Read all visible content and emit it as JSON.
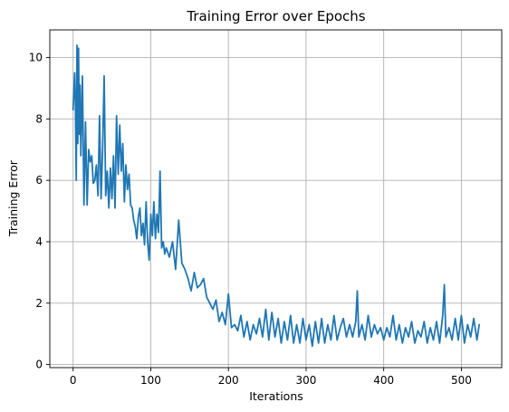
{
  "chart_data": {
    "type": "line",
    "title": "Training Error over Epochs",
    "xlabel": "Iterations",
    "ylabel": "Training Error",
    "xlim": [
      -30,
      552
    ],
    "ylim": [
      -0.1,
      10.9
    ],
    "xticks": [
      0,
      100,
      200,
      300,
      400,
      500
    ],
    "yticks": [
      0,
      2,
      4,
      6,
      8,
      10
    ],
    "grid": true,
    "legend": "none",
    "colors": {
      "series": "#1f77b4",
      "grid": "#b0b0b0"
    },
    "series": [
      {
        "x": [
          0,
          2,
          3,
          4,
          5,
          6,
          7,
          8,
          9,
          10,
          12,
          14,
          16,
          18,
          20,
          22,
          24,
          26,
          28,
          30,
          32,
          34,
          36,
          38,
          40,
          42,
          44,
          46,
          48,
          50,
          52,
          54,
          56,
          58,
          60,
          62,
          64,
          66,
          68,
          70,
          72,
          74,
          76,
          78,
          80,
          82,
          84,
          86,
          88,
          90,
          92,
          94,
          96,
          98,
          100,
          102,
          104,
          106,
          108,
          110,
          112,
          114,
          116,
          118,
          120,
          124,
          128,
          132,
          136,
          140,
          144,
          148,
          152,
          156,
          160,
          164,
          168,
          172,
          176,
          180,
          184,
          188,
          192,
          196,
          200,
          204,
          208,
          212,
          216,
          220,
          224,
          228,
          232,
          236,
          240,
          244,
          248,
          252,
          256,
          260,
          264,
          268,
          272,
          276,
          280,
          284,
          288,
          292,
          296,
          300,
          304,
          308,
          312,
          316,
          320,
          324,
          328,
          332,
          336,
          340,
          344,
          348,
          352,
          356,
          360,
          364,
          366,
          368,
          372,
          376,
          380,
          384,
          388,
          392,
          396,
          400,
          404,
          408,
          412,
          416,
          420,
          424,
          428,
          432,
          436,
          440,
          444,
          448,
          452,
          456,
          460,
          464,
          468,
          472,
          476,
          478,
          480,
          484,
          488,
          492,
          496,
          500,
          504,
          508,
          512,
          516,
          520,
          523
        ],
        "y": [
          8.3,
          9.5,
          8.4,
          6.0,
          10.4,
          7.2,
          10.3,
          7.5,
          9.1,
          6.8,
          9.4,
          5.2,
          7.9,
          5.2,
          7.0,
          6.6,
          6.8,
          5.9,
          6.0,
          6.5,
          5.5,
          8.1,
          5.4,
          7.0,
          9.4,
          5.5,
          6.3,
          5.1,
          6.4,
          5.4,
          6.8,
          5.1,
          8.1,
          6.2,
          7.8,
          6.3,
          7.2,
          5.3,
          6.5,
          5.7,
          6.2,
          5.2,
          5.1,
          4.7,
          4.5,
          4.1,
          4.8,
          5.1,
          4.2,
          4.6,
          3.9,
          5.3,
          4.0,
          3.4,
          4.9,
          4.2,
          5.3,
          4.1,
          4.9,
          4.3,
          6.3,
          3.8,
          4.0,
          3.6,
          3.8,
          3.5,
          4.0,
          3.1,
          4.7,
          3.3,
          3.1,
          2.8,
          2.4,
          3.0,
          2.5,
          2.6,
          2.8,
          2.2,
          2.0,
          1.8,
          2.1,
          1.4,
          1.7,
          1.3,
          2.3,
          1.2,
          1.3,
          1.1,
          1.6,
          0.9,
          1.4,
          0.8,
          1.3,
          1.0,
          1.5,
          0.9,
          1.8,
          0.8,
          1.7,
          0.9,
          1.5,
          0.7,
          1.4,
          0.8,
          1.6,
          0.7,
          1.3,
          0.7,
          1.5,
          0.8,
          1.3,
          0.6,
          1.4,
          0.7,
          1.5,
          0.7,
          1.3,
          0.8,
          1.6,
          0.8,
          1.2,
          1.5,
          0.9,
          1.3,
          0.9,
          1.4,
          2.4,
          0.9,
          1.3,
          0.8,
          1.6,
          0.9,
          1.3,
          1.0,
          1.2,
          0.8,
          1.2,
          0.9,
          1.6,
          0.8,
          1.3,
          0.7,
          1.2,
          0.9,
          1.4,
          0.7,
          1.1,
          0.9,
          1.4,
          0.7,
          1.2,
          0.8,
          1.4,
          0.7,
          1.6,
          2.6,
          0.9,
          1.2,
          0.8,
          1.5,
          0.8,
          1.6,
          0.7,
          1.3,
          0.9,
          1.5,
          0.8,
          1.3
        ]
      }
    ]
  }
}
